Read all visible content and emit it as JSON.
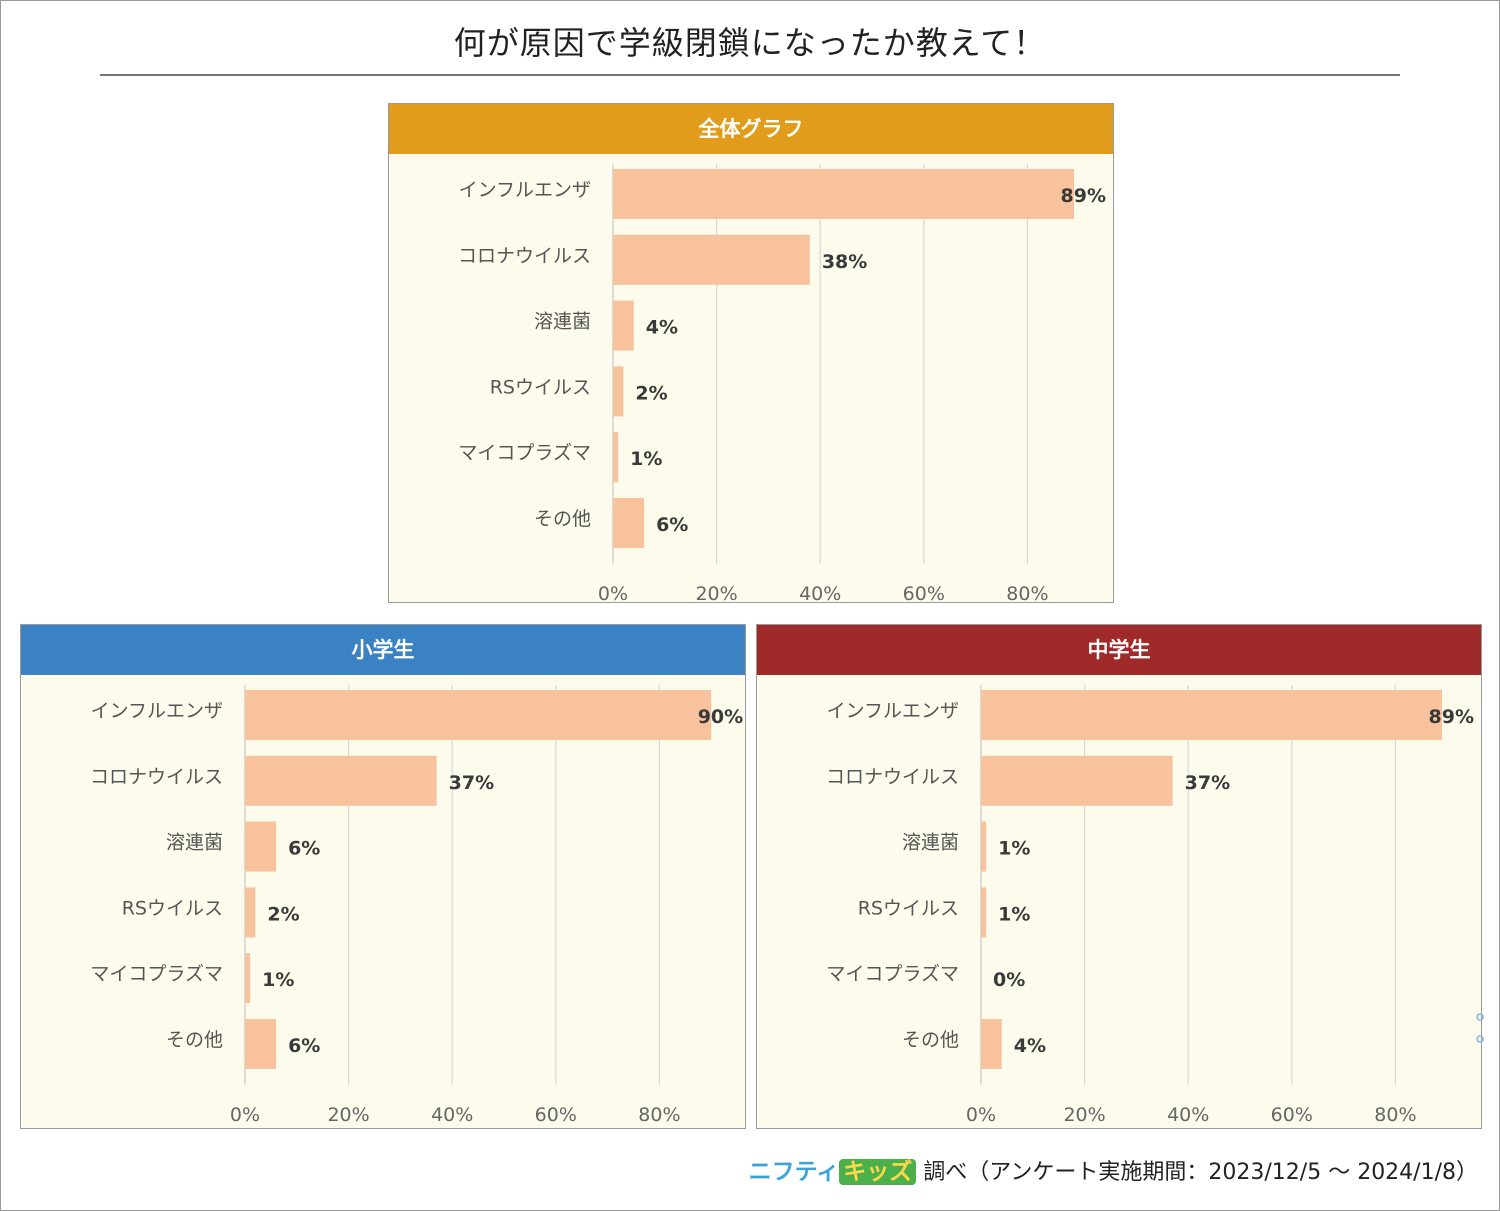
{
  "title": "何が原因で学級閉鎖になったか教えて！",
  "footer": {
    "brand_nifty": "ニフティ",
    "brand_kids": "キッズ",
    "text": "調べ（アンケート実施期間：2023/12/5 ～ 2024/1/8）"
  },
  "colors": {
    "bar": "#f8c29c",
    "grid": "#d8d8d8",
    "panel_bg": "#fdfbec",
    "overall_header": "#e09c1a",
    "elementary_header": "#3a82c4",
    "junior_header": "#a0292a"
  },
  "chart_data": [
    {
      "id": "overall",
      "type": "bar",
      "orientation": "horizontal",
      "title": "全体グラフ",
      "categories": [
        "インフルエンザ",
        "コロナウイルス",
        "溶連菌",
        "RSウイルス",
        "マイコプラズマ",
        "その他"
      ],
      "values": [
        89,
        38,
        4,
        2,
        1,
        6
      ],
      "value_labels": [
        "89%",
        "38%",
        "4%",
        "2%",
        "1%",
        "6%"
      ],
      "xlim": [
        0,
        100
      ],
      "ticks": [
        0,
        20,
        40,
        60,
        80
      ],
      "tick_labels": [
        "0%",
        "20%",
        "40%",
        "60%",
        "80%"
      ],
      "grid": true
    },
    {
      "id": "elementary",
      "type": "bar",
      "orientation": "horizontal",
      "title": "小学生",
      "categories": [
        "インフルエンザ",
        "コロナウイルス",
        "溶連菌",
        "RSウイルス",
        "マイコプラズマ",
        "その他"
      ],
      "values": [
        90,
        37,
        6,
        2,
        1,
        6
      ],
      "value_labels": [
        "90%",
        "37%",
        "6%",
        "2%",
        "1%",
        "6%"
      ],
      "xlim": [
        0,
        100
      ],
      "ticks": [
        0,
        20,
        40,
        60,
        80
      ],
      "tick_labels": [
        "0%",
        "20%",
        "40%",
        "60%",
        "80%"
      ],
      "grid": true
    },
    {
      "id": "junior",
      "type": "bar",
      "orientation": "horizontal",
      "title": "中学生",
      "categories": [
        "インフルエンザ",
        "コロナウイルス",
        "溶連菌",
        "RSウイルス",
        "マイコプラズマ",
        "その他"
      ],
      "values": [
        89,
        37,
        1,
        1,
        0,
        4
      ],
      "value_labels": [
        "89%",
        "37%",
        "1%",
        "1%",
        "0%",
        "4%"
      ],
      "xlim": [
        0,
        100
      ],
      "ticks": [
        0,
        20,
        40,
        60,
        80
      ],
      "tick_labels": [
        "0%",
        "20%",
        "40%",
        "60%",
        "80%"
      ],
      "grid": true
    }
  ]
}
